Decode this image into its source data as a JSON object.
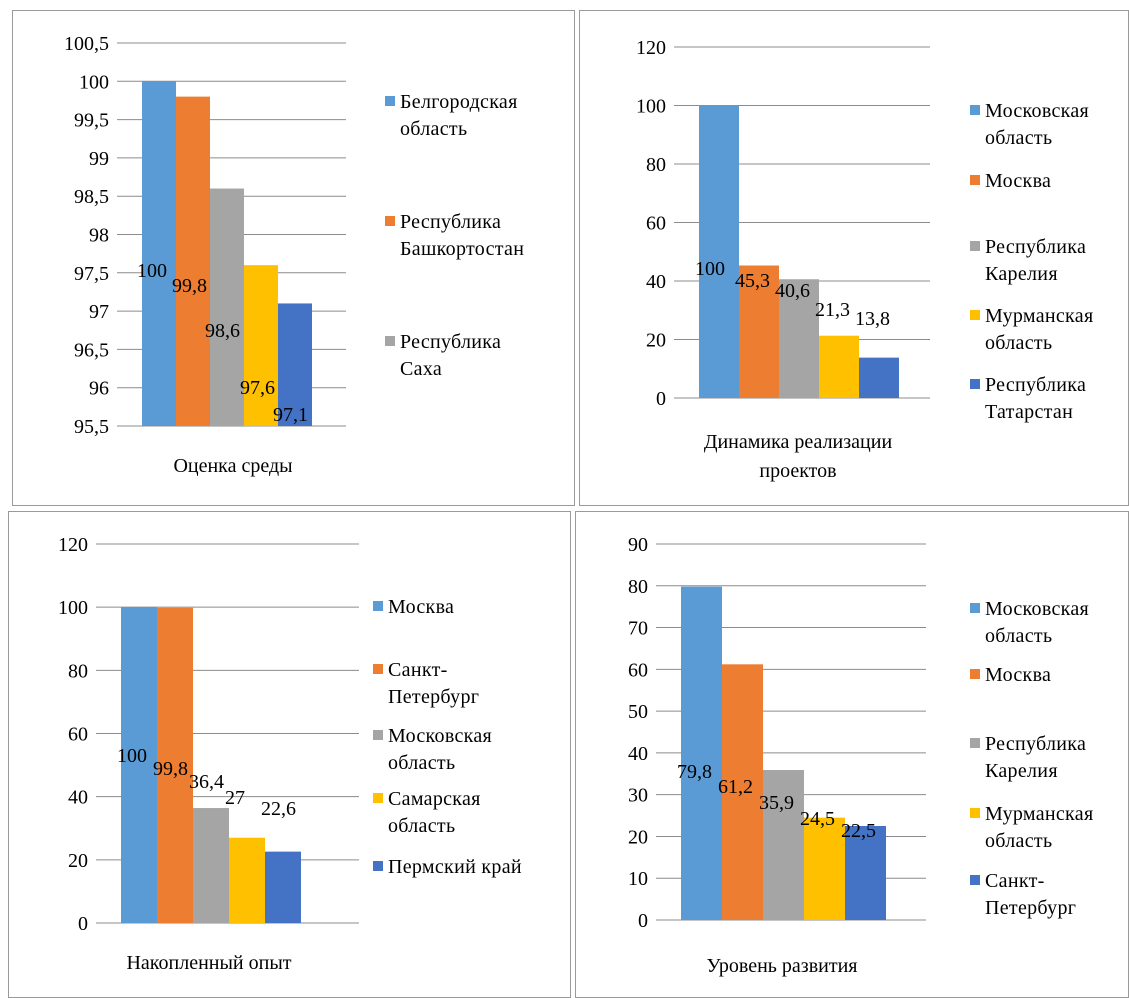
{
  "chart_data": [
    {
      "type": "bar",
      "category": "Оценка среды",
      "ylim": [
        95.5,
        100.5
      ],
      "yticks": [
        "95,5",
        "96",
        "96,5",
        "97",
        "97,5",
        "98",
        "98,5",
        "99",
        "99,5",
        "100",
        "100,5"
      ],
      "series": [
        {
          "name": "Белгородская область",
          "value": 100,
          "label": "100",
          "color": "#5b9bd5"
        },
        {
          "name": "Республика Башкортостан",
          "value": 99.8,
          "label": "99,8",
          "color": "#ed7d31"
        },
        {
          "name": "Республика Саха",
          "value": 98.6,
          "label": "98,6",
          "color": "#a5a5a5"
        },
        {
          "name": "",
          "value": 97.6,
          "label": "97,6",
          "color": "#ffc000"
        },
        {
          "name": "",
          "value": 97.1,
          "label": "97,1",
          "color": "#4472c4"
        }
      ]
    },
    {
      "type": "bar",
      "category": "Динамика реализации проектов",
      "ylim": [
        0,
        120
      ],
      "yticks": [
        "0",
        "20",
        "40",
        "60",
        "80",
        "100",
        "120"
      ],
      "series": [
        {
          "name": "Московская область",
          "value": 100,
          "label": "100",
          "color": "#5b9bd5"
        },
        {
          "name": "Москва",
          "value": 45.3,
          "label": "45,3",
          "color": "#ed7d31"
        },
        {
          "name": "Республика Карелия",
          "value": 40.6,
          "label": "40,6",
          "color": "#a5a5a5"
        },
        {
          "name": "Мурманская область",
          "value": 21.3,
          "label": "21,3",
          "color": "#ffc000"
        },
        {
          "name": "Республика Татарстан",
          "value": 13.8,
          "label": "13,8",
          "color": "#4472c4"
        }
      ]
    },
    {
      "type": "bar",
      "category": "Накопленный опыт",
      "ylim": [
        0,
        120
      ],
      "yticks": [
        "0",
        "20",
        "40",
        "60",
        "80",
        "100",
        "120"
      ],
      "series": [
        {
          "name": "Москва",
          "value": 100,
          "label": "100",
          "color": "#5b9bd5"
        },
        {
          "name": "Санкт-Петербург",
          "value": 99.8,
          "label": "99,8",
          "color": "#ed7d31"
        },
        {
          "name": "Московская область",
          "value": 36.4,
          "label": "36,4",
          "color": "#a5a5a5"
        },
        {
          "name": "Самарская область",
          "value": 27,
          "label": "27",
          "color": "#ffc000"
        },
        {
          "name": "Пермский край",
          "value": 22.6,
          "label": "22,6",
          "color": "#4472c4"
        }
      ]
    },
    {
      "type": "bar",
      "category": "Уровень развития",
      "ylim": [
        0,
        90
      ],
      "yticks": [
        "0",
        "10",
        "20",
        "30",
        "40",
        "50",
        "60",
        "70",
        "80",
        "90"
      ],
      "series": [
        {
          "name": "Московская область",
          "value": 79.8,
          "label": "79,8",
          "color": "#5b9bd5"
        },
        {
          "name": "Москва",
          "value": 61.2,
          "label": "61,2",
          "color": "#ed7d31"
        },
        {
          "name": "Республика Карелия",
          "value": 35.9,
          "label": "35,9",
          "color": "#a5a5a5"
        },
        {
          "name": "Мурманская область",
          "value": 24.5,
          "label": "24,5",
          "color": "#ffc000"
        },
        {
          "name": "Санкт-Петербург",
          "value": 22.5,
          "label": "22,5",
          "color": "#4472c4"
        }
      ]
    }
  ],
  "legend_rows": [
    [
      [
        "Белгородская",
        "область"
      ],
      [
        "Республика",
        "Башкортостан"
      ],
      [
        "Республика",
        "Саха"
      ]
    ],
    [
      [
        "Московская",
        "область"
      ],
      [
        "Москва"
      ],
      [
        "Республика",
        "Карелия"
      ],
      [
        "Мурманская",
        "область"
      ],
      [
        "Республика",
        "Татарстан"
      ]
    ],
    [
      [
        "Москва"
      ],
      [
        "Санкт-",
        "Петербург"
      ],
      [
        "Московская",
        "область"
      ],
      [
        "Самарская",
        "область"
      ],
      [
        "Пермский край"
      ]
    ],
    [
      [
        "Московская",
        "область"
      ],
      [
        "Москва"
      ],
      [
        "Республика",
        "Карелия"
      ],
      [
        "Мурманская",
        "область"
      ],
      [
        "Санкт-",
        "Петербург"
      ]
    ]
  ],
  "category_lines": [
    [
      "Оценка среды"
    ],
    [
      "Динамика реализации",
      "проектов"
    ],
    [
      "Накопленный опыт"
    ],
    [
      "Уровень развития"
    ]
  ],
  "grid": true,
  "legend_position": "right"
}
